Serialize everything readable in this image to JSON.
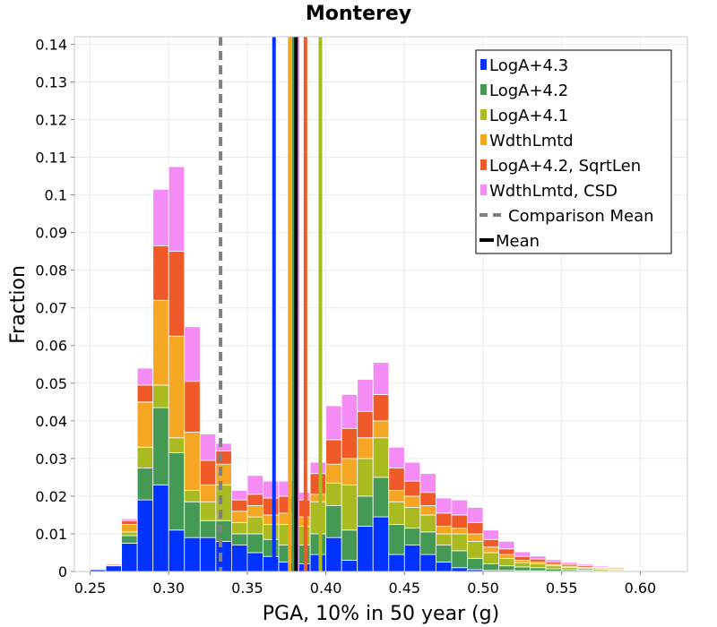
{
  "chart_data": {
    "type": "bar",
    "stacked": true,
    "title": "Monterey",
    "xlabel": "PGA, 10% in 50 year (g)",
    "ylabel": "Fraction",
    "xlim": [
      0.24,
      0.63
    ],
    "ylim": [
      0,
      0.142
    ],
    "grid": true,
    "bin_width": 0.01,
    "x_ticks": [
      0.25,
      0.3,
      0.35,
      0.4,
      0.45,
      0.5,
      0.55,
      0.6
    ],
    "x_tick_labels": [
      "0.25",
      "0.30",
      "0.35",
      "0.40",
      "0.45",
      "0.50",
      "0.55",
      "0.60"
    ],
    "y_ticks": [
      0,
      0.01,
      0.02,
      0.03,
      0.04,
      0.05,
      0.06,
      0.07,
      0.08,
      0.09,
      0.1,
      0.11,
      0.12,
      0.13,
      0.14
    ],
    "y_tick_labels": [
      "0",
      "0.01",
      "0.02",
      "0.03",
      "0.04",
      "0.05",
      "0.06",
      "0.07",
      "0.08",
      "0.09",
      "0.1",
      "0.11",
      "0.12",
      "0.13",
      "0.14"
    ],
    "bins": [
      0.255,
      0.265,
      0.275,
      0.285,
      0.295,
      0.305,
      0.315,
      0.325,
      0.335,
      0.345,
      0.355,
      0.365,
      0.375,
      0.385,
      0.395,
      0.405,
      0.415,
      0.425,
      0.435,
      0.445,
      0.455,
      0.465,
      0.475,
      0.485,
      0.495,
      0.505,
      0.515,
      0.525,
      0.535,
      0.545,
      0.555,
      0.565,
      0.575,
      0.585,
      0.595,
      0.605,
      0.615
    ],
    "series": [
      {
        "name": "LogA+4.3",
        "color": "#0033ff",
        "values": [
          0.0005,
          0.0015,
          0.0075,
          0.019,
          0.023,
          0.011,
          0.009,
          0.009,
          0.008,
          0.007,
          0.005,
          0.004,
          0.0025,
          0.002,
          0.0045,
          0.009,
          0.003,
          0.012,
          0.0145,
          0.0045,
          0.007,
          0.0045,
          0.0025,
          0.001,
          0.0005,
          0.0003,
          0.0003,
          0.0002,
          0.0002,
          0.0001,
          0.0001,
          0.0001,
          0,
          0,
          0,
          0,
          0
        ]
      },
      {
        "name": "LogA+4.2",
        "color": "#449955",
        "values": [
          0,
          0.0002,
          0.002,
          0.0085,
          0.0205,
          0.0205,
          0.0095,
          0.0045,
          0.0055,
          0.003,
          0.005,
          0.0045,
          0.0045,
          0.005,
          0.0055,
          0.0085,
          0.008,
          0.008,
          0.0105,
          0.008,
          0.0045,
          0.006,
          0.0045,
          0.0045,
          0.003,
          0.0017,
          0.0012,
          0.001,
          0.0008,
          0.0006,
          0.0004,
          0.0003,
          0.0002,
          0.0002,
          0.0001,
          0.0001,
          0
        ]
      },
      {
        "name": "LogA+4.1",
        "color": "#aabb22",
        "values": [
          0,
          0,
          0.001,
          0.0055,
          0.006,
          0.004,
          0.003,
          0.005,
          0.0095,
          0.003,
          0.0045,
          0.004,
          0.0055,
          0.005,
          0.0085,
          0.006,
          0.012,
          0.01,
          0.0105,
          0.006,
          0.0055,
          0.0045,
          0.003,
          0.0045,
          0.0045,
          0.003,
          0.002,
          0.0012,
          0.001,
          0.0008,
          0.0006,
          0.0005,
          0.0004,
          0.0003,
          0.0002,
          0.0002,
          0.0001
        ]
      },
      {
        "name": "WdthLmtd",
        "color": "#f5a623",
        "values": [
          0,
          0,
          0.002,
          0.012,
          0.0225,
          0.027,
          0.0155,
          0.0045,
          0.0055,
          0.003,
          0.003,
          0.0025,
          0.003,
          0.0025,
          0.002,
          0.005,
          0.007,
          0.0055,
          0.0045,
          0.003,
          0.003,
          0.0025,
          0.002,
          0.0015,
          0.002,
          0.0015,
          0.001,
          0.0006,
          0.0005,
          0.0004,
          0.0003,
          0.0002,
          0.0002,
          0.0002,
          0.0001,
          0.0001,
          0
        ]
      },
      {
        "name": "LogA+4.2, SqrtLen",
        "color": "#f05a28",
        "values": [
          0.0001,
          0.0003,
          0.001,
          0.0045,
          0.0145,
          0.0225,
          0.0135,
          0.0065,
          0.0035,
          0.003,
          0.003,
          0.0045,
          0.0045,
          0.0045,
          0.0055,
          0.0065,
          0.008,
          0.007,
          0.007,
          0.006,
          0.004,
          0.0035,
          0.0035,
          0.0035,
          0.003,
          0.002,
          0.0015,
          0.001,
          0.0008,
          0.0006,
          0.0005,
          0.0004,
          0.0003,
          0.0003,
          0.0002,
          0.0001,
          0.0001
        ]
      },
      {
        "name": "WdthLmtd, CSD",
        "color": "#f58cf5",
        "values": [
          0,
          0,
          0.0005,
          0.0045,
          0.015,
          0.0225,
          0.0145,
          0.007,
          0.002,
          0.0025,
          0.005,
          0.0045,
          0.004,
          0.002,
          0.003,
          0.009,
          0.009,
          0.0085,
          0.0085,
          0.0055,
          0.005,
          0.005,
          0.004,
          0.004,
          0.004,
          0.0025,
          0.002,
          0.0012,
          0.0008,
          0.0006,
          0.0005,
          0.0004,
          0.0003,
          0.0002,
          0.0002,
          0.0001,
          0.0001
        ]
      }
    ],
    "vertical_lines": [
      {
        "name": "LogA+4.3 mean",
        "x": 0.367,
        "color": "#0033ff"
      },
      {
        "name": "WdthLmtd mean",
        "x": 0.377,
        "color": "#f5a623"
      },
      {
        "name": "LogA+4.2 mean",
        "x": 0.3795,
        "color": "#449955"
      },
      {
        "name": "WdthLmtd, CSD mean",
        "x": 0.382,
        "color": "#f58cf5"
      },
      {
        "name": "LogA+4.2, SqrtLen mean",
        "x": 0.387,
        "color": "#f05a28"
      },
      {
        "name": "LogA+4.1 mean",
        "x": 0.3965,
        "color": "#aabb22"
      },
      {
        "name": "Mean",
        "x": 0.381,
        "color": "#000000"
      },
      {
        "name": "Comparison Mean",
        "x": 0.333,
        "color": "#808080",
        "dashed": true
      }
    ],
    "legend": {
      "position": "top-right",
      "entries": [
        {
          "label": "LogA+4.3",
          "color": "#0033ff",
          "kind": "box"
        },
        {
          "label": "LogA+4.2",
          "color": "#449955",
          "kind": "box"
        },
        {
          "label": "LogA+4.1",
          "color": "#aabb22",
          "kind": "box"
        },
        {
          "label": "WdthLmtd",
          "color": "#f5a623",
          "kind": "box"
        },
        {
          "label": "LogA+4.2, SqrtLen",
          "color": "#f05a28",
          "kind": "box"
        },
        {
          "label": "WdthLmtd, CSD",
          "color": "#f58cf5",
          "kind": "box"
        },
        {
          "label": "Comparison Mean",
          "color": "#808080",
          "kind": "dashed"
        },
        {
          "label": "Mean",
          "color": "#000000",
          "kind": "solid"
        }
      ]
    }
  }
}
